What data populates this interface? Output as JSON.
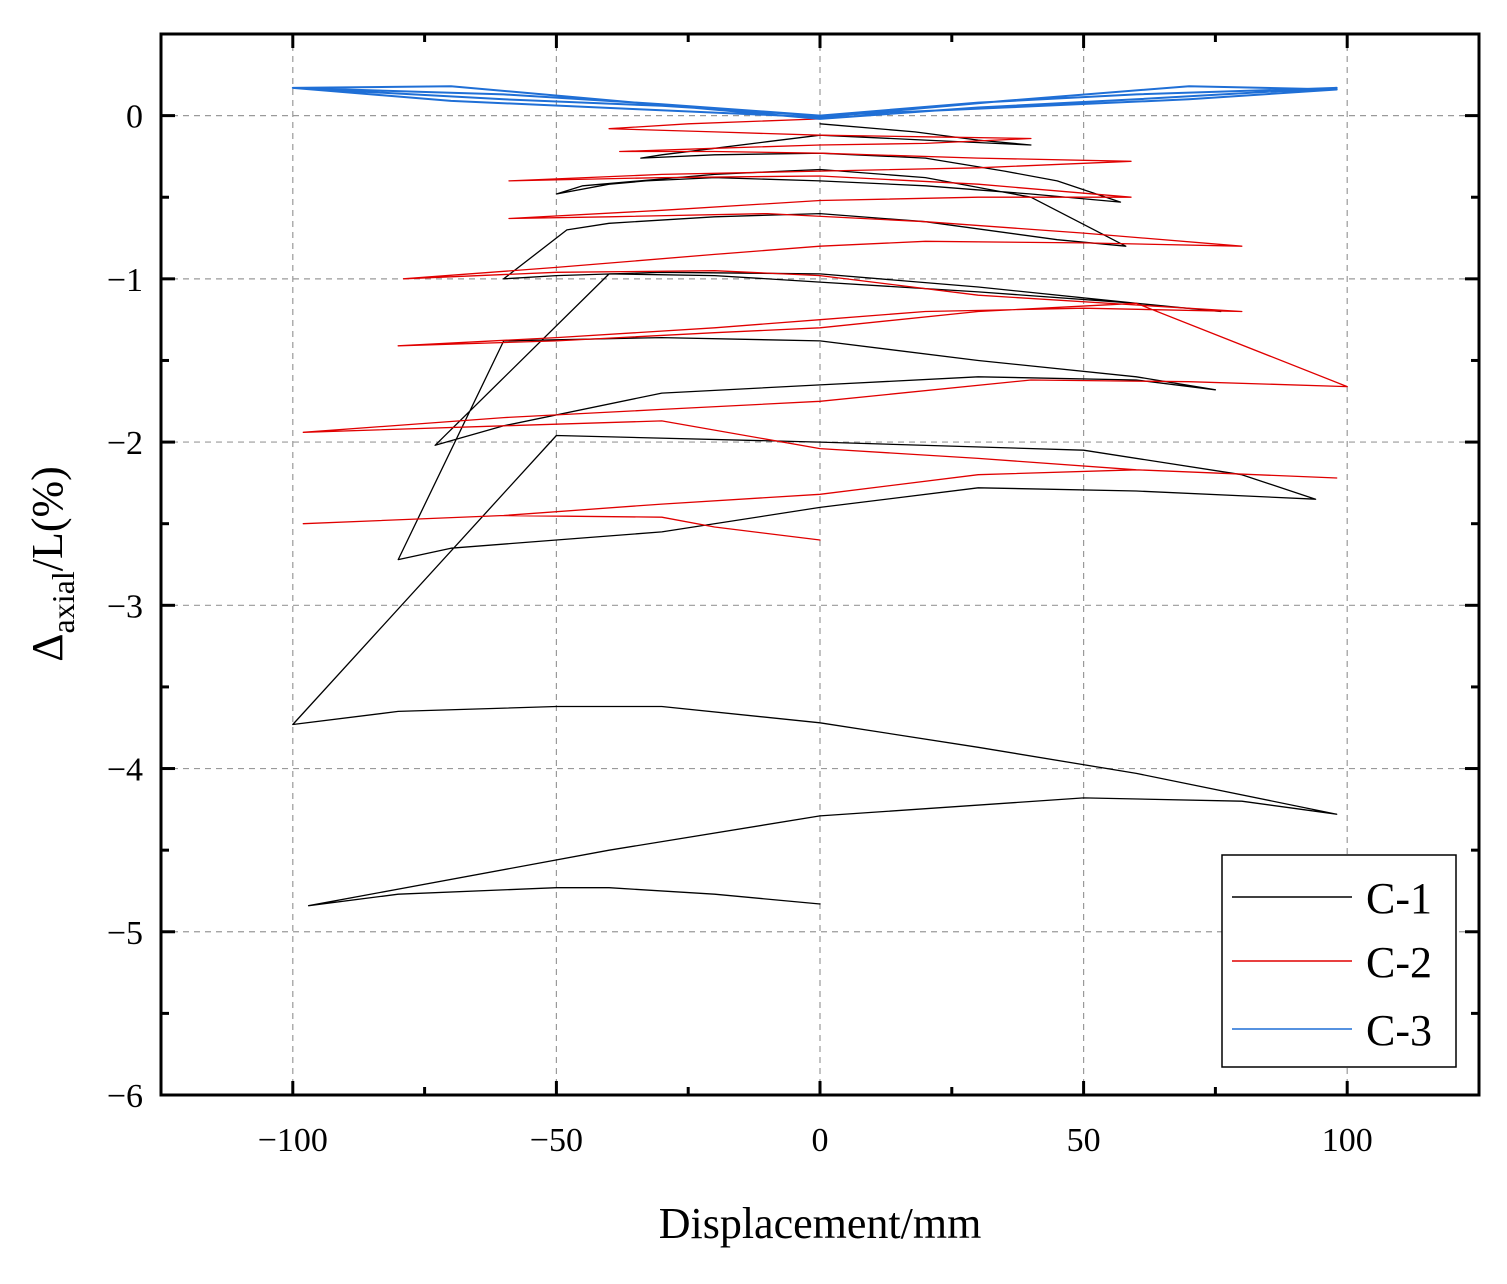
{
  "chart_data": {
    "type": "line",
    "title": "",
    "xlabel": "Displacement/mm",
    "ylabel": {
      "main": "Δ",
      "sub": "axial",
      "rest": "/L(%)"
    },
    "xlim": [
      -125,
      125
    ],
    "ylim": [
      -6,
      0.5
    ],
    "xticks": [
      -100,
      -50,
      0,
      50,
      100
    ],
    "xtick_labels": [
      "−100",
      "−50",
      "0",
      "50",
      "100"
    ],
    "yticks": [
      0,
      -1,
      -2,
      -3,
      -4,
      -5,
      -6
    ],
    "ytick_labels": [
      "0",
      "−1",
      "−2",
      "−3",
      "−4",
      "−5",
      "−6"
    ],
    "grid": true,
    "legend_position": "bottom-right",
    "series": [
      {
        "name": "C-1",
        "color": "#000000",
        "x": [
          0,
          18,
          30,
          40,
          20,
          0,
          -10,
          -20,
          -30,
          -34,
          -20,
          0,
          20,
          35,
          45,
          57,
          40,
          20,
          0,
          -20,
          -33,
          -40,
          -50,
          -45,
          -20,
          0,
          20,
          40,
          58,
          45,
          20,
          0,
          -20,
          -40,
          -48,
          -60,
          -50,
          -30,
          0,
          30,
          60,
          76,
          60,
          30,
          0,
          -20,
          -40,
          -73,
          -60,
          -30,
          0,
          30,
          60,
          75,
          60,
          30,
          0,
          -30,
          -60,
          -80,
          -70,
          -50,
          -30,
          0,
          30,
          60,
          94,
          80,
          50,
          0,
          -50,
          -100,
          -80,
          -50,
          -30,
          0,
          30,
          60,
          98,
          80,
          50,
          0,
          -40,
          -97,
          -80,
          -50,
          -40,
          -20,
          0
        ],
        "y": [
          -0.05,
          -0.1,
          -0.15,
          -0.18,
          -0.15,
          -0.12,
          -0.16,
          -0.2,
          -0.24,
          -0.26,
          -0.24,
          -0.23,
          -0.26,
          -0.34,
          -0.4,
          -0.53,
          -0.48,
          -0.43,
          -0.4,
          -0.38,
          -0.4,
          -0.42,
          -0.48,
          -0.43,
          -0.36,
          -0.33,
          -0.38,
          -0.5,
          -0.8,
          -0.76,
          -0.65,
          -0.6,
          -0.62,
          -0.66,
          -0.7,
          -1.0,
          -0.98,
          -0.96,
          -0.97,
          -1.05,
          -1.15,
          -1.2,
          -1.15,
          -1.08,
          -1.02,
          -0.98,
          -0.97,
          -2.02,
          -1.9,
          -1.7,
          -1.65,
          -1.6,
          -1.62,
          -1.68,
          -1.6,
          -1.5,
          -1.38,
          -1.36,
          -1.38,
          -2.72,
          -2.65,
          -2.6,
          -2.55,
          -2.4,
          -2.28,
          -2.3,
          -2.35,
          -2.2,
          -2.05,
          -2.0,
          -1.96,
          -3.73,
          -3.65,
          -3.62,
          -3.62,
          -3.72,
          -3.87,
          -4.03,
          -4.28,
          -4.2,
          -4.18,
          -4.29,
          -4.5,
          -4.84,
          -4.77,
          -4.73,
          -4.73,
          -4.77,
          -4.83
        ]
      },
      {
        "name": "C-2",
        "color": "#e00000",
        "x": [
          0,
          -25,
          -40,
          -20,
          0,
          20,
          40,
          20,
          0,
          -20,
          -38,
          -20,
          0,
          30,
          59,
          30,
          0,
          -30,
          -59,
          -30,
          0,
          30,
          59,
          30,
          0,
          -30,
          -59,
          -40,
          -10,
          20,
          50,
          80,
          50,
          20,
          0,
          -20,
          -50,
          -79,
          -50,
          -20,
          0,
          30,
          60,
          80,
          50,
          20,
          0,
          -20,
          -50,
          -80,
          -50,
          -20,
          0,
          30,
          60,
          100,
          70,
          40,
          0,
          -30,
          -60,
          -98,
          -60,
          -30,
          0,
          30,
          60,
          98,
          60,
          30,
          0,
          -30,
          -60,
          -98,
          -60,
          -30,
          -20,
          0
        ],
        "y": [
          -0.02,
          -0.05,
          -0.08,
          -0.1,
          -0.12,
          -0.13,
          -0.14,
          -0.17,
          -0.18,
          -0.2,
          -0.22,
          -0.22,
          -0.23,
          -0.26,
          -0.28,
          -0.32,
          -0.34,
          -0.36,
          -0.4,
          -0.38,
          -0.37,
          -0.42,
          -0.5,
          -0.5,
          -0.52,
          -0.58,
          -0.63,
          -0.62,
          -0.6,
          -0.65,
          -0.72,
          -0.8,
          -0.78,
          -0.77,
          -0.8,
          -0.85,
          -0.93,
          -1.0,
          -0.96,
          -0.95,
          -0.98,
          -1.1,
          -1.16,
          -1.2,
          -1.18,
          -1.2,
          -1.25,
          -1.3,
          -1.36,
          -1.41,
          -1.38,
          -1.33,
          -1.3,
          -1.2,
          -1.15,
          -1.66,
          -1.63,
          -1.62,
          -1.75,
          -1.8,
          -1.85,
          -1.94,
          -1.9,
          -1.87,
          -2.04,
          -2.1,
          -2.17,
          -2.22,
          -2.17,
          -2.2,
          -2.32,
          -2.38,
          -2.45,
          -2.5,
          -2.45,
          -2.46,
          -2.52,
          -2.6
        ]
      },
      {
        "name": "C-3",
        "color": "#1f6fd6",
        "x": [
          0,
          -30,
          -60,
          -100,
          -60,
          -30,
          0,
          30,
          60,
          98,
          60,
          30,
          0,
          -35,
          -70,
          -100,
          -70,
          -35,
          0,
          35,
          70,
          98,
          70,
          35,
          0
        ],
        "y": [
          0,
          0.07,
          0.13,
          0.17,
          0.1,
          0.06,
          0.0,
          0.08,
          0.13,
          0.17,
          0.1,
          0.05,
          -0.02,
          0.08,
          0.18,
          0.17,
          0.09,
          0.04,
          -0.01,
          0.09,
          0.18,
          0.16,
          0.1,
          0.05,
          0.0
        ]
      }
    ]
  }
}
